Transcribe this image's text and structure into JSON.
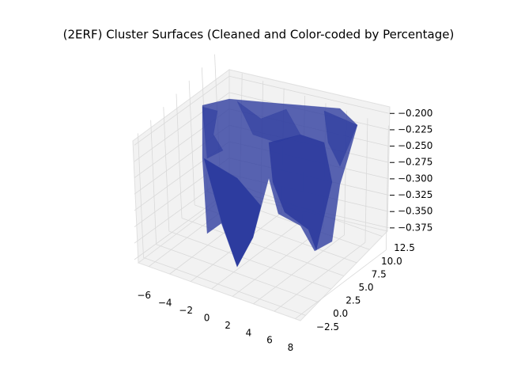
{
  "chart_data": {
    "type": "surface3d",
    "title": "(2ERF) Cluster Surfaces (Cleaned and Color-coded by Percentage)",
    "color": "#2b3a9e",
    "grid": true,
    "xlim": [
      -7,
      8.5
    ],
    "xticks": [
      {
        "value": -6,
        "label": "−6"
      },
      {
        "value": -4,
        "label": "−4"
      },
      {
        "value": -2,
        "label": "−2"
      },
      0,
      2,
      4,
      6,
      8
    ],
    "ylim": [
      -3.5,
      13.5
    ],
    "yticks": [
      {
        "value": -2.5,
        "label": "−2.5"
      },
      {
        "value": 0,
        "label": "0.0"
      },
      2.5,
      {
        "value": 5,
        "label": "5.0"
      },
      7.5,
      {
        "value": 10,
        "label": "10.0"
      },
      12.5
    ],
    "zlim": [
      -0.38,
      -0.19
    ],
    "zticks": [
      {
        "value": -0.2,
        "label": "−0.200"
      },
      {
        "value": -0.225,
        "label": "−0.225"
      },
      {
        "value": -0.25,
        "label": "−0.250"
      },
      {
        "value": -0.275,
        "label": "−0.275"
      },
      {
        "value": -0.3,
        "label": "−0.300"
      },
      {
        "value": -0.325,
        "label": "−0.325"
      },
      {
        "value": -0.35,
        "label": "−0.350"
      },
      {
        "value": -0.375,
        "label": "−0.375"
      }
    ]
  }
}
